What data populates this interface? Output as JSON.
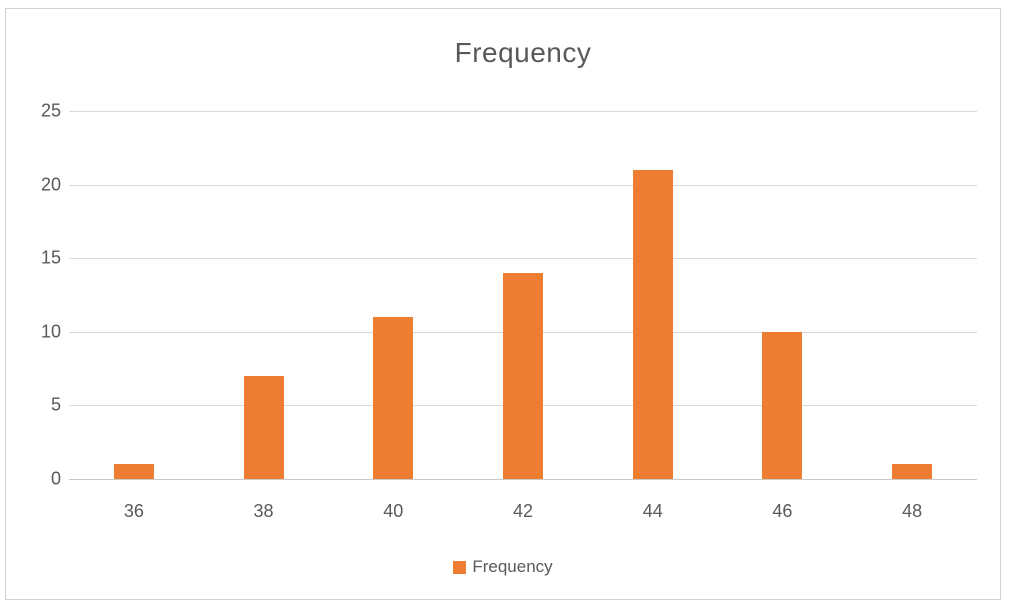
{
  "title": "Frequency",
  "legend": {
    "label": "Frequency"
  },
  "colors": {
    "bar": "#ED7D31",
    "gridline": "#D9D9D9",
    "axis_line": "#C9C9C9",
    "text": "#595959",
    "frame_border": "#D2D2D2"
  },
  "chart_data": {
    "type": "bar",
    "title": "Frequency",
    "categories": [
      "36",
      "38",
      "40",
      "42",
      "44",
      "46",
      "48"
    ],
    "series": [
      {
        "name": "Frequency",
        "values": [
          1,
          7,
          11,
          14,
          21,
          10,
          1
        ]
      }
    ],
    "xlabel": "",
    "ylabel": "",
    "ylim": [
      0,
      25
    ],
    "yticks": [
      0,
      5,
      10,
      15,
      20,
      25
    ],
    "grid": "horizontal",
    "legend_position": "bottom"
  }
}
